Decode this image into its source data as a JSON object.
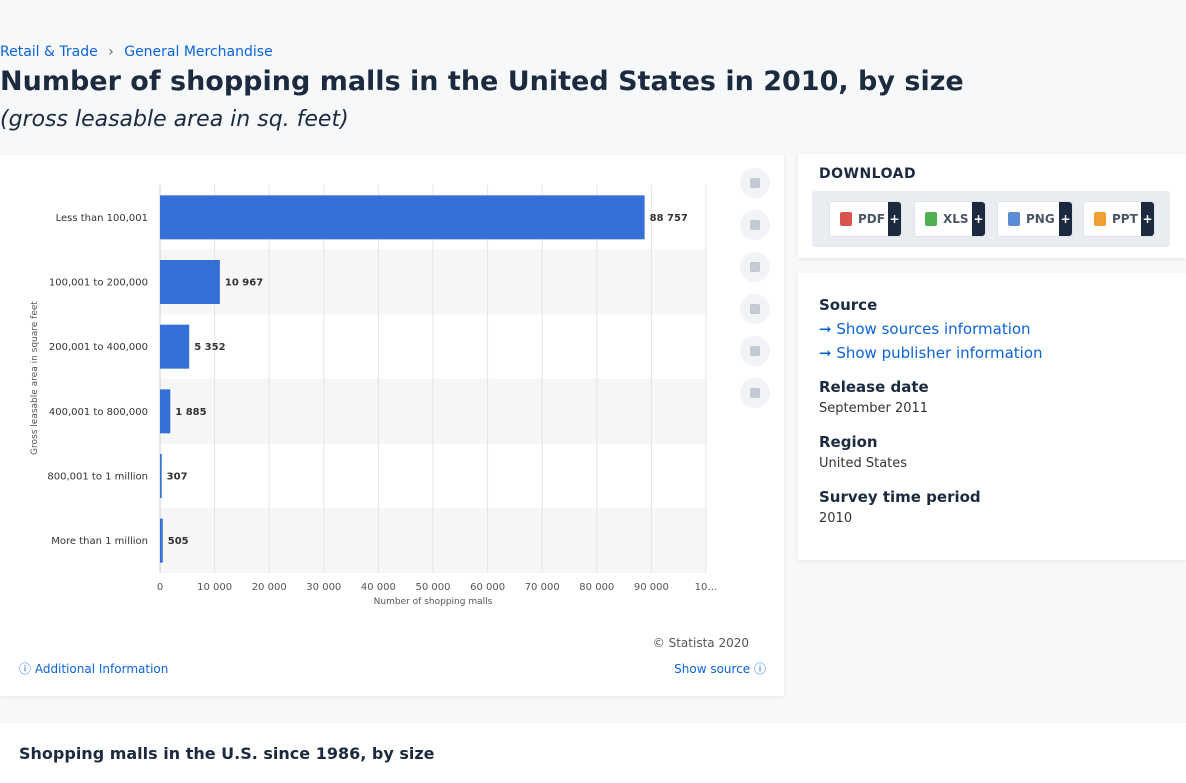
{
  "breadcrumb": [
    "Retail & Trade",
    "General Merchandise"
  ],
  "header": {
    "title": "Number of shopping malls in the United States in 2010, by size",
    "subtitle": "(gross leasable area in sq. feet)"
  },
  "chart_data": {
    "type": "bar",
    "orientation": "horizontal",
    "color": "#3470d6",
    "grid": true,
    "categories": [
      "Less than 100,001",
      "100,001 to 200,000",
      "200,001 to 400,000",
      "400,001 to 800,000",
      "800,001 to 1 million",
      "More than 1 million"
    ],
    "values": [
      88757,
      10967,
      5352,
      1885,
      307,
      505
    ],
    "value_labels": [
      "88 757",
      "10 967",
      "5 352",
      "1 885",
      "307",
      "505"
    ],
    "xlim": [
      0,
      100000
    ],
    "xticks": [
      0,
      {
        "value": 10000,
        "label": "10 000"
      },
      {
        "value": 20000,
        "label": "20 000"
      },
      {
        "value": 30000,
        "label": "30 000"
      },
      {
        "value": 40000,
        "label": "40 000"
      },
      {
        "value": 50000,
        "label": "50 000"
      },
      {
        "value": 60000,
        "label": "60 000"
      },
      {
        "value": 70000,
        "label": "70 000"
      },
      {
        "value": 80000,
        "label": "80 000"
      },
      {
        "value": 90000,
        "label": "90 000"
      },
      {
        "value": 100000,
        "label": "10…"
      }
    ],
    "x_label": "Number of shopping malls",
    "y_label": "Gross leasable area in square feet"
  },
  "footer": {
    "copyright": "© Statista 2020",
    "additional": "Additional Information",
    "show_source": "Show source"
  },
  "download": {
    "title": "DOWNLOAD",
    "items": [
      {
        "label": "PDF",
        "badge": "+"
      },
      {
        "label": "XLS",
        "badge": "+"
      },
      {
        "label": "PNG",
        "badge": "+"
      },
      {
        "label": "PPT",
        "badge": "+"
      }
    ]
  },
  "info": {
    "source": "Source",
    "show_sources": "Show sources information",
    "show_publisher": "Show publisher information",
    "release_label": "Release date",
    "release": "September 2011",
    "region_label": "Region",
    "region": "United States",
    "period_label": "Survey time period",
    "period": "2010"
  },
  "related": {
    "title": "Shopping malls in the U.S. since 1986, by size"
  }
}
